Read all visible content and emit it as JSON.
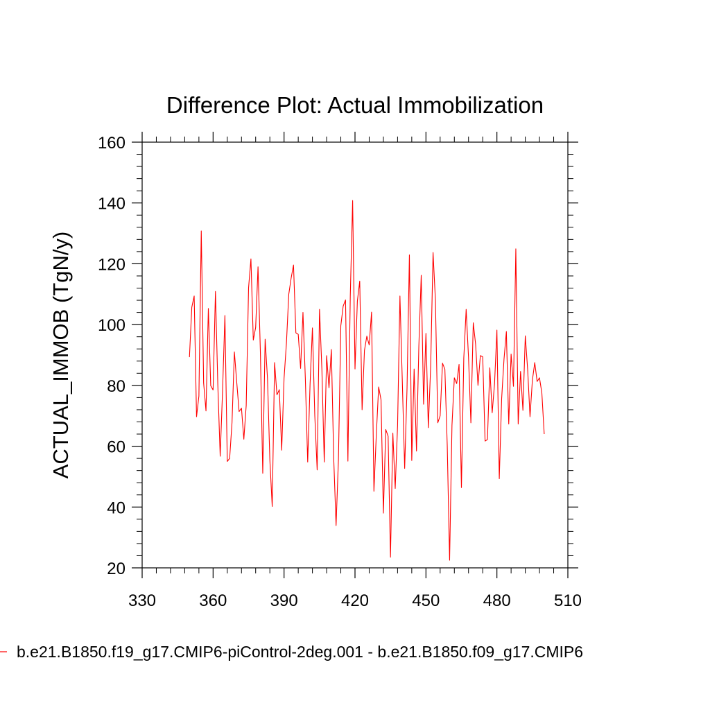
{
  "chart_data": {
    "type": "line",
    "title": "Difference Plot: Actual Immobilization",
    "xlabel": "",
    "ylabel": "ACTUAL_IMMOB  (TgN/y)",
    "xlim": [
      330,
      510
    ],
    "ylim": [
      20,
      160
    ],
    "xticks": [
      330,
      360,
      390,
      420,
      450,
      480,
      510
    ],
    "yticks": [
      20,
      40,
      60,
      80,
      100,
      120,
      140,
      160
    ],
    "grid": false,
    "legend_position": "bottom-left",
    "series": [
      {
        "name": "b.e21.B1850.f19_g17.CMIP6-piControl-2deg.001 - b.e21.B1850.f09_g17.CMIP6",
        "color": "#ff0000",
        "x_start": 350,
        "x_step": 1,
        "values": [
          89.3,
          105.7,
          109.4,
          69.7,
          76.5,
          130.8,
          80.8,
          71.6,
          105.3,
          79.9,
          78.5,
          110.9,
          80.1,
          56.7,
          78.2,
          103.0,
          55.0,
          56.0,
          67.8,
          91.0,
          81.0,
          71.4,
          72.5,
          62.3,
          73.4,
          112.1,
          121.6,
          94.9,
          99.1,
          119.0,
          90.8,
          51.1,
          95.2,
          82.3,
          55.5,
          40.2,
          87.5,
          76.9,
          78.6,
          58.7,
          82.3,
          93.8,
          110.0,
          115.3,
          119.6,
          97.3,
          96.8,
          85.6,
          104.0,
          82.3,
          54.8,
          80.4,
          98.9,
          70.1,
          52.2,
          105.0,
          85.3,
          54.8,
          89.8,
          79.2,
          91.8,
          56.0,
          33.9,
          55.7,
          99.6,
          106.1,
          108.1,
          55.1,
          109.2,
          140.8,
          85.4,
          107.7,
          114.3,
          72.0,
          91.5,
          96.2,
          93.3,
          104.1,
          45.2,
          63.6,
          79.5,
          75.3,
          38.0,
          65.5,
          63.3,
          23.5,
          64.3,
          46.1,
          66.8,
          109.4,
          81.4,
          52.7,
          79.1,
          122.9,
          55.3,
          85.4,
          58.4,
          93.0,
          116.2,
          73.8,
          97.1,
          66.1,
          86.5,
          123.7,
          108.1,
          67.7,
          70.0,
          87.3,
          85.3,
          60.3,
          22.5,
          66.9,
          82.5,
          80.6,
          86.9,
          46.4,
          89.0,
          105.0,
          89.2,
          67.7,
          100.6,
          93.5,
          80.0,
          89.8,
          89.4,
          61.7,
          62.2,
          85.8,
          71.0,
          80.6,
          98.2,
          49.3,
          75.6,
          88.6,
          97.7,
          67.3,
          90.3,
          79.7,
          124.9,
          67.3,
          84.6,
          71.8,
          96.3,
          85.2,
          69.7,
          81.7,
          87.5,
          81.3,
          82.5,
          77.5,
          64.0
        ]
      }
    ]
  }
}
